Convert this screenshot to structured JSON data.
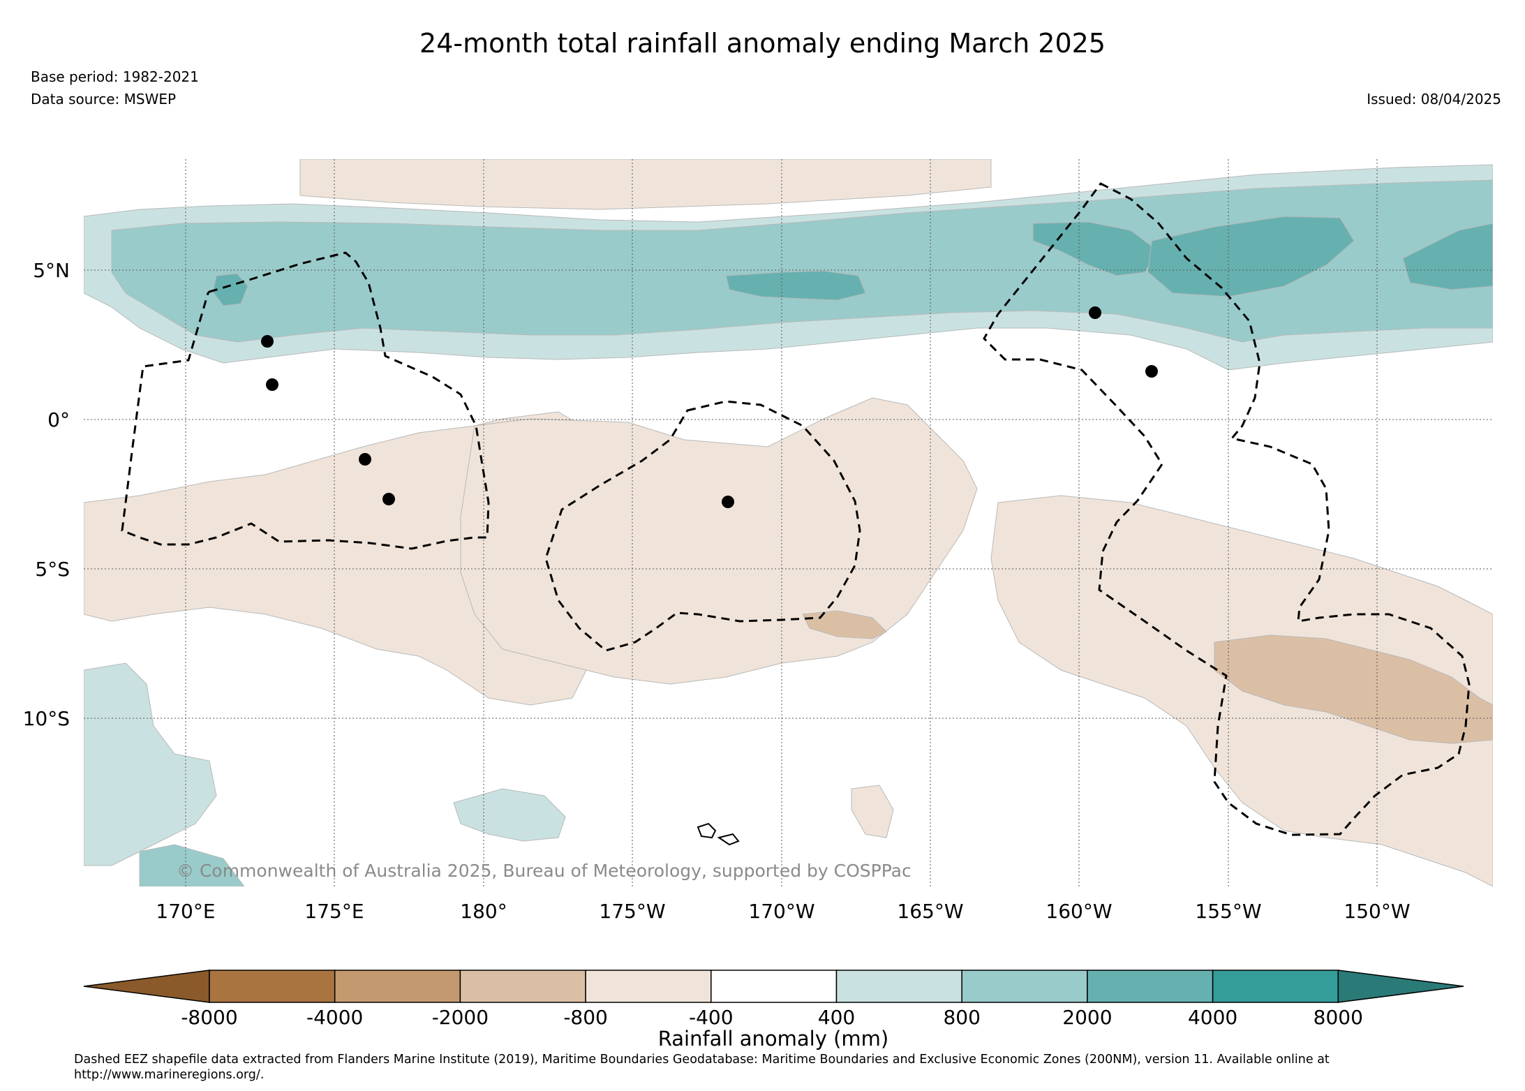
{
  "title": "24-month total rainfall anomaly ending March 2025",
  "base_period": "Base period: 1982-2021",
  "data_source": "Data source: MSWEP",
  "issued": "Issued: 08/04/2025",
  "copyright": "© Commonwealth of Australia 2025, Bureau of Meteorology, supported by COSPPac",
  "footnote": "Dashed EEZ shapefile data extracted from Flanders Marine Institute (2019), Maritime Boundaries Geodatabase: Maritime Boundaries and Exclusive Economic Zones (200NM), version 11. Available online at http://www.marineregions.org/.",
  "map": {
    "lon_range": [
      166.6,
      213.9
    ],
    "lat_range": [
      -15.5,
      8.7
    ],
    "grid": "dotted",
    "lat_ticks": [
      {
        "value": 5,
        "label": "5°N"
      },
      {
        "value": 0,
        "label": "0°"
      },
      {
        "value": -5,
        "label": "5°S"
      },
      {
        "value": -10,
        "label": "10°S"
      }
    ],
    "lon_ticks": [
      {
        "value": 170,
        "label": "170°E"
      },
      {
        "value": 175,
        "label": "175°E"
      },
      {
        "value": 180,
        "label": "180°"
      },
      {
        "value": 185,
        "label": "175°W"
      },
      {
        "value": 190,
        "label": "170°W"
      },
      {
        "value": 195,
        "label": "165°W"
      },
      {
        "value": 200,
        "label": "160°W"
      },
      {
        "value": 205,
        "label": "155°W"
      },
      {
        "value": 210,
        "label": "150°W"
      }
    ]
  },
  "colorbar": {
    "label": "Rainfall anomaly (mm)",
    "tick_labels": [
      "-8000",
      "-4000",
      "-2000",
      "-800",
      "-400",
      "400",
      "800",
      "2000",
      "4000",
      "8000"
    ],
    "colors": [
      "#8b5a2b",
      "#a97440",
      "#c39a70",
      "#dbbfa5",
      "#f0e4da",
      "#ffffff",
      "#c9e2e1",
      "#99cbca",
      "#66b1b0",
      "#349c99",
      "#2a7a78"
    ],
    "extend": "both"
  }
}
